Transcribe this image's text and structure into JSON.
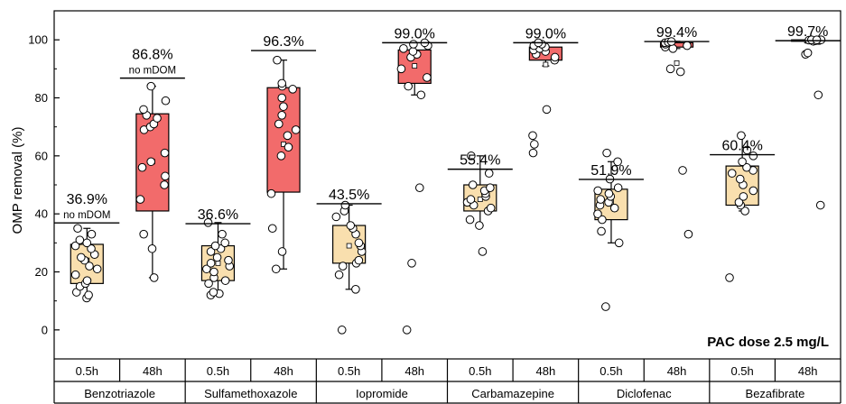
{
  "chart_data": {
    "type": "box",
    "ylabel": "OMP removal (%)",
    "yticks": [
      0,
      20,
      40,
      60,
      80,
      100
    ],
    "ylim": [
      -10,
      110
    ],
    "dose_label": "PAC dose 2.5 mg/L",
    "compounds": [
      {
        "name": "Benzotriazole",
        "groups": [
          {
            "time": "0.5h",
            "q1": 16,
            "q3": 29.5,
            "whisker_low": 11,
            "whisker_high": 35,
            "mean": 24,
            "mean_line": 36.9,
            "label": "36.9%",
            "note": "no mDOM",
            "points": [
              11,
              12,
              13,
              15,
              16,
              17,
              19,
              21,
              22,
              24,
              25,
              26,
              28,
              29,
              30,
              31,
              33,
              35
            ]
          },
          {
            "time": "48h",
            "q1": 41,
            "q3": 74.5,
            "whisker_low": 18,
            "whisker_high": 84,
            "mean": 58,
            "mean_line": 86.8,
            "label": "86.8%",
            "note": "no mDOM",
            "points": [
              18,
              28,
              33,
              45,
              50,
              53,
              56,
              58,
              61,
              69,
              70,
              71,
              73,
              74,
              76,
              79,
              84
            ]
          }
        ]
      },
      {
        "name": "Sulfamethoxazole",
        "groups": [
          {
            "time": "0.5h",
            "q1": 17,
            "q3": 29,
            "whisker_low": 12,
            "whisker_high": 37,
            "mean": 23,
            "mean_line": 36.6,
            "label": "36.6%",
            "points": [
              12,
              12.5,
              13,
              16,
              17,
              18,
              20,
              21,
              22,
              23,
              24,
              25,
              27,
              28,
              29,
              30,
              33,
              37
            ]
          },
          {
            "time": "48h",
            "q1": 47.5,
            "q3": 83.5,
            "whisker_low": 21,
            "whisker_high": 93,
            "mean": 64,
            "mean_line": 96.3,
            "label": "96.3%",
            "points": [
              21,
              27,
              35,
              47,
              60,
              63,
              67,
              69,
              71,
              74,
              77,
              80,
              83,
              84,
              85,
              93
            ]
          }
        ]
      },
      {
        "name": "Iopromide",
        "groups": [
          {
            "time": "0.5h",
            "q1": 23,
            "q3": 36,
            "whisker_low": 14,
            "whisker_high": 43,
            "mean": 29,
            "mean_line": 43.5,
            "label": "43.5%",
            "points": [
              0,
              14,
              19,
              22,
              23,
              24,
              27,
              29,
              30,
              33,
              35,
              36,
              39,
              41,
              43
            ]
          },
          {
            "time": "48h",
            "q1": 85,
            "q3": 96.5,
            "whisker_low": 81,
            "whisker_high": 99,
            "mean": 91,
            "mean_line": 99.0,
            "label": "99.0%",
            "points": [
              0,
              23,
              49,
              81,
              84,
              87,
              90,
              94,
              95,
              96,
              97,
              98,
              98.5,
              99
            ]
          }
        ]
      },
      {
        "name": "Carbamazepine",
        "groups": [
          {
            "time": "0.5h",
            "q1": 41,
            "q3": 50,
            "whisker_low": 36,
            "whisker_high": 60,
            "mean": 45,
            "mean_line": 55.4,
            "label": "55.4%",
            "points": [
              27,
              36,
              38,
              41,
              42,
              43,
              44,
              45,
              46,
              47,
              48,
              49,
              50,
              54,
              60
            ]
          },
          {
            "time": "48h",
            "q1": 93,
            "q3": 97.5,
            "whisker_low": 91,
            "whisker_high": 99,
            "mean": 91.5,
            "mean_line": 99.0,
            "label": "99.0%",
            "points": [
              61,
              64,
              67,
              76,
              93,
              94,
              95,
              96,
              96.5,
              97,
              97.5,
              98,
              98.5,
              99
            ]
          }
        ]
      },
      {
        "name": "Diclofenac",
        "groups": [
          {
            "time": "0.5h",
            "q1": 38,
            "q3": 48.5,
            "whisker_low": 30,
            "whisker_high": 58,
            "mean": 44,
            "mean_line": 51.9,
            "label": "51.9%",
            "points": [
              8,
              30,
              34,
              38,
              40,
              42,
              43,
              44,
              45,
              46,
              47,
              48,
              49,
              52,
              58,
              61
            ]
          },
          {
            "time": "48h",
            "q1": 97.5,
            "q3": 99,
            "whisker_low": 97,
            "whisker_high": 99.5,
            "mean": 92,
            "mean_line": 99.4,
            "label": "99.4%",
            "points": [
              33,
              55,
              89,
              90,
              97,
              97.5,
              98,
              98.5,
              99,
              99.2,
              99.4
            ]
          }
        ]
      },
      {
        "name": "Bezafibrate",
        "groups": [
          {
            "time": "0.5h",
            "q1": 43,
            "q3": 56.5,
            "whisker_low": 41,
            "whisker_high": 67,
            "mean": 50,
            "mean_line": 60.4,
            "label": "60.4%",
            "points": [
              18,
              41,
              43,
              44,
              46,
              48,
              50,
              52,
              54,
              55,
              56,
              58,
              60,
              62,
              67
            ]
          },
          {
            "time": "48h",
            "q1": 99.5,
            "q3": 100,
            "whisker_low": 99,
            "whisker_high": 100,
            "mean": 99.6,
            "mean_line": 99.7,
            "label": "99.7%",
            "points": [
              43,
              81,
              95,
              95.5,
              99.5,
              99.7,
              99.8,
              99.9,
              100,
              100,
              100
            ]
          }
        ]
      }
    ],
    "colors": {
      "box_0_5h": "#f9dfae",
      "box_48h": "#f26b6b",
      "point_fill": "#ffffff",
      "line": "#000000"
    }
  }
}
